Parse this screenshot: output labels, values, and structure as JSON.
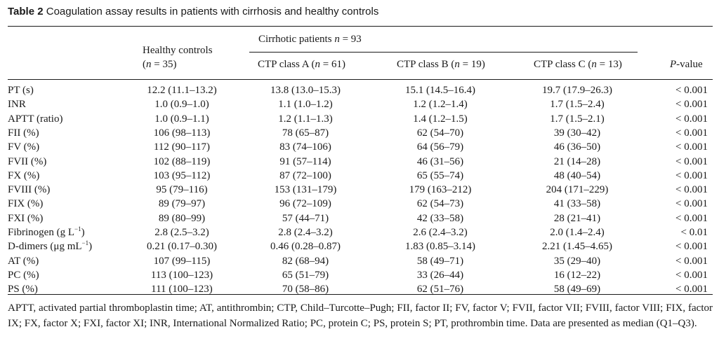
{
  "caption": {
    "number": "Table 2",
    "text": "Coagulation assay results in patients with cirrhosis and healthy controls"
  },
  "header": {
    "group_prefix": "Cirrhotic patients ",
    "group_n": "n",
    "group_suffix": " = 93",
    "controls_line1": "Healthy controls",
    "controls_line2_prefix": "(",
    "controls_line2_n": "n",
    "controls_line2_suffix": " = 35)",
    "class_a_prefix": "CTP class A (",
    "class_a_n": "n",
    "class_a_suffix": " = 61)",
    "class_b_prefix": "CTP class B (",
    "class_b_n": "n",
    "class_b_suffix": " = 19)",
    "class_c_prefix": "CTP class C (",
    "class_c_n": "n",
    "class_c_suffix": " = 13)",
    "pvalue_p": "P",
    "pvalue_suffix": "-value"
  },
  "rows": [
    {
      "label": "PT (s)",
      "label_sup": "",
      "label_end": "",
      "controls": "12.2 (11.1–13.2)",
      "class_a": "13.8 (13.0–15.3)",
      "class_b": "15.1 (14.5–16.4)",
      "class_c": "19.7 (17.9–26.3)",
      "p": "< 0.001"
    },
    {
      "label": "INR",
      "label_sup": "",
      "label_end": "",
      "controls": "1.0 (0.9–1.0)",
      "class_a": "1.1 (1.0–1.2)",
      "class_b": "1.2 (1.2–1.4)",
      "class_c": "1.7 (1.5–2.4)",
      "p": "< 0.001"
    },
    {
      "label": "APTT (ratio)",
      "label_sup": "",
      "label_end": "",
      "controls": "1.0 (0.9–1.1)",
      "class_a": "1.2 (1.1–1.3)",
      "class_b": "1.4 (1.2–1.5)",
      "class_c": "1.7 (1.5–2.1)",
      "p": "< 0.001"
    },
    {
      "label": "FII (%)",
      "label_sup": "",
      "label_end": "",
      "controls": "106 (98–113)",
      "class_a": "78 (65–87)",
      "class_b": "62 (54–70)",
      "class_c": "39 (30–42)",
      "p": "< 0.001"
    },
    {
      "label": "FV (%)",
      "label_sup": "",
      "label_end": "",
      "controls": "112 (90–117)",
      "class_a": "83 (74–106)",
      "class_b": "64 (56–79)",
      "class_c": "46 (36–50)",
      "p": "< 0.001"
    },
    {
      "label": "FVII (%)",
      "label_sup": "",
      "label_end": "",
      "controls": "102 (88–119)",
      "class_a": "91 (57–114)",
      "class_b": "46 (31–56)",
      "class_c": "21 (14–28)",
      "p": "< 0.001"
    },
    {
      "label": "FX (%)",
      "label_sup": "",
      "label_end": "",
      "controls": "103 (95–112)",
      "class_a": "87 (72–100)",
      "class_b": "65 (55–74)",
      "class_c": "48 (40–54)",
      "p": "< 0.001"
    },
    {
      "label": "FVIII (%)",
      "label_sup": "",
      "label_end": "",
      "controls": "95 (79–116)",
      "class_a": "153 (131–179)",
      "class_b": "179 (163–212)",
      "class_c": "204 (171–229)",
      "p": "< 0.001"
    },
    {
      "label": "FIX (%)",
      "label_sup": "",
      "label_end": "",
      "controls": "89 (79–97)",
      "class_a": "96 (72–109)",
      "class_b": "62 (54–73)",
      "class_c": "41 (33–58)",
      "p": "< 0.001"
    },
    {
      "label": "FXI (%)",
      "label_sup": "",
      "label_end": "",
      "controls": "89 (80–99)",
      "class_a": "57 (44–71)",
      "class_b": "42 (33–58)",
      "class_c": "28 (21–41)",
      "p": "< 0.001"
    },
    {
      "label": "Fibrinogen (g L",
      "label_sup": "−1",
      "label_end": ")",
      "controls": "2.8 (2.5–3.2)",
      "class_a": "2.8 (2.4–3.2)",
      "class_b": "2.6 (2.4–3.2)",
      "class_c": "2.0 (1.4–2.4)",
      "p": "< 0.01"
    },
    {
      "label": "D-dimers (μg mL",
      "label_sup": "−1",
      "label_end": ")",
      "controls": "0.21 (0.17–0.30)",
      "class_a": "0.46 (0.28–0.87)",
      "class_b": "1.83 (0.85–3.14)",
      "class_c": "2.21 (1.45–4.65)",
      "p": "< 0.001"
    },
    {
      "label": "AT (%)",
      "label_sup": "",
      "label_end": "",
      "controls": "107 (99–115)",
      "class_a": "82 (68–94)",
      "class_b": "58 (49–71)",
      "class_c": "35 (29–40)",
      "p": "< 0.001"
    },
    {
      "label": "PC (%)",
      "label_sup": "",
      "label_end": "",
      "controls": "113 (100–123)",
      "class_a": "65 (51–79)",
      "class_b": "33 (26–44)",
      "class_c": "16 (12–22)",
      "p": "< 0.001"
    },
    {
      "label": "PS (%)",
      "label_sup": "",
      "label_end": "",
      "controls": "111 (100–123)",
      "class_a": "70 (58–86)",
      "class_b": "62 (51–76)",
      "class_c": "58 (49–69)",
      "p": "< 0.001"
    }
  ],
  "footnote": "APTT, activated partial thromboplastin time; AT, antithrombin; CTP, Child–Turcotte–Pugh; FII, factor II; FV, factor V; FVII, factor VII; FVIII, factor VIII; FIX, factor IX; FX, factor X; FXI, factor XI; INR, International Normalized Ratio; PC, protein C; PS, protein S; PT, prothrombin time. Data are presented as median (Q1–Q3)."
}
